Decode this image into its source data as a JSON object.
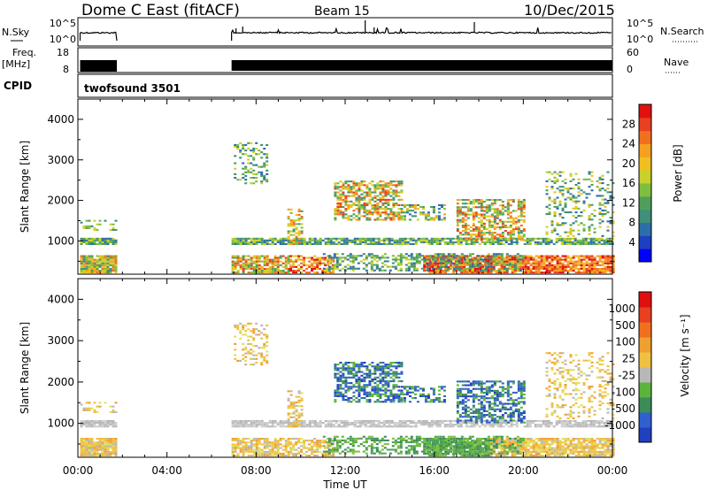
{
  "header": {
    "station": "Dome C East (fitACF)",
    "beam": "Beam 15",
    "date": "10/Dec/2015"
  },
  "strip_panels": {
    "nsky": {
      "left_label": "N.Sky",
      "right_label": "N.Search",
      "ticks_left": [
        "10^5",
        "10^0"
      ],
      "ticks_right": [
        "10^5",
        "10^0"
      ]
    },
    "freq": {
      "left_label": "Freq.",
      "left_unit": "[MHz]",
      "right_label": "Nave",
      "ticks_left": [
        "18",
        "8"
      ],
      "ticks_right": [
        "60",
        "0"
      ]
    },
    "cpid": {
      "left_label": "CPID",
      "value": "twofsound 3501"
    }
  },
  "chart_data": [
    {
      "type": "heatmap",
      "name": "power",
      "ylabel": "Slant Range [km]",
      "yticks": [
        "4000",
        "3000",
        "2000",
        "1000"
      ],
      "ylim": [
        180,
        4500
      ],
      "xlim_hours": [
        0,
        24
      ],
      "colorbar": {
        "label": "Power [dB]",
        "ticks": [
          "28",
          "24",
          "20",
          "16",
          "12",
          "8",
          "4"
        ],
        "colors": [
          "#0000ff",
          "#1e3fbf",
          "#2c6ea8",
          "#3f8f7a",
          "#4f9f5a",
          "#7fbf3f",
          "#c8d22a",
          "#f0c020",
          "#f5a020",
          "#f07020",
          "#e84020",
          "#e01010"
        ]
      }
    },
    {
      "type": "heatmap",
      "name": "velocity",
      "ylabel": "Slant Range [km]",
      "yticks": [
        "4000",
        "3000",
        "2000",
        "1000"
      ],
      "ylim": [
        180,
        4500
      ],
      "xlim_hours": [
        0,
        24
      ],
      "colorbar": {
        "label": "Velocity [m s⁻¹]",
        "ticks": [
          "1000",
          "500",
          "100",
          "25",
          "-25",
          "-100",
          "-500",
          "-1000"
        ],
        "colors": [
          "#2040c0",
          "#3060d0",
          "#3c8c5a",
          "#5cb43c",
          "#b8b8b8",
          "#f0c040",
          "#f0a030",
          "#f07020",
          "#e84020",
          "#e01010"
        ]
      }
    }
  ],
  "x_axis": {
    "label": "Time UT",
    "ticks": [
      "00:00",
      "04:00",
      "08:00",
      "12:00",
      "16:00",
      "20:00",
      "00:00"
    ]
  },
  "data_gap_hours": [
    1.75,
    6.9
  ]
}
